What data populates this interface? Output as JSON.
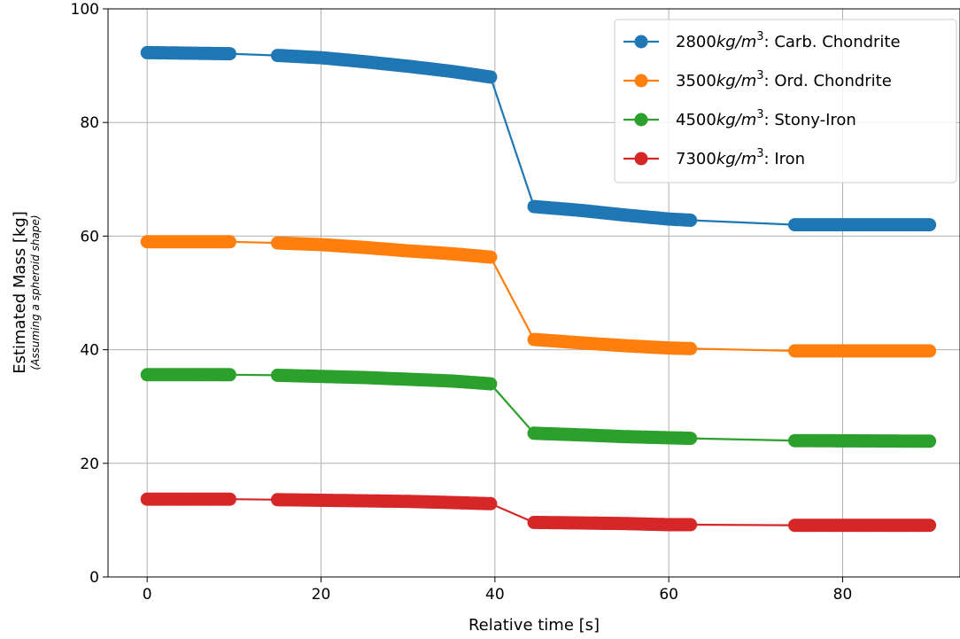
{
  "chart_data": {
    "type": "line",
    "xlabel": "Relative time [s]",
    "ylabel": "Estimated Mass [kg]",
    "ylabel_sub": "(Assuming a spheroid shape)",
    "xlim": [
      -4.5,
      93.5
    ],
    "ylim": [
      0,
      100
    ],
    "xticks": [
      0,
      20,
      40,
      60,
      80
    ],
    "yticks": [
      0,
      20,
      40,
      60,
      80,
      100
    ],
    "grid": true,
    "legend_position": "top-right",
    "marker": "circle",
    "series": [
      {
        "name": "2800kg/m³: Carb. Chondrite",
        "legend": {
          "pre": "2800",
          "var": "kg/m",
          "sup": "3",
          "post": ": Carb. Chondrite"
        },
        "color": "#1f77b4",
        "points": [
          [
            0,
            92.3
          ],
          [
            9.5,
            92.1
          ],
          [
            15,
            91.8
          ],
          [
            20,
            91.4
          ],
          [
            25,
            90.7
          ],
          [
            30,
            89.9
          ],
          [
            35,
            89.0
          ],
          [
            39.5,
            88.0
          ],
          [
            44.5,
            65.2
          ],
          [
            50,
            64.5
          ],
          [
            55,
            63.7
          ],
          [
            60,
            63.0
          ],
          [
            62.5,
            62.8
          ],
          [
            74.5,
            62.0
          ],
          [
            90,
            62.0
          ]
        ],
        "segments": [
          [
            0,
            9.5
          ],
          [
            15,
            39.5
          ],
          [
            44.5,
            62.5
          ],
          [
            74.5,
            90
          ]
        ]
      },
      {
        "name": "3500kg/m³: Ord. Chondrite",
        "legend": {
          "pre": "3500",
          "var": "kg/m",
          "sup": "3",
          "post": ": Ord. Chondrite"
        },
        "color": "#ff7f0e",
        "points": [
          [
            0,
            59.0
          ],
          [
            9.5,
            59.0
          ],
          [
            15,
            58.8
          ],
          [
            20,
            58.5
          ],
          [
            25,
            58.0
          ],
          [
            30,
            57.4
          ],
          [
            35,
            56.9
          ],
          [
            39.5,
            56.3
          ],
          [
            44.5,
            41.8
          ],
          [
            50,
            41.2
          ],
          [
            55,
            40.7
          ],
          [
            60,
            40.3
          ],
          [
            62.5,
            40.2
          ],
          [
            74.5,
            39.8
          ],
          [
            90,
            39.8
          ]
        ],
        "segments": [
          [
            0,
            9.5
          ],
          [
            15,
            39.5
          ],
          [
            44.5,
            62.5
          ],
          [
            74.5,
            90
          ]
        ]
      },
      {
        "name": "4500kg/m³: Stony-Iron",
        "legend": {
          "pre": "4500",
          "var": "kg/m",
          "sup": "3",
          "post": ": Stony-Iron"
        },
        "color": "#2ca02c",
        "points": [
          [
            0,
            35.6
          ],
          [
            9.5,
            35.6
          ],
          [
            15,
            35.5
          ],
          [
            20,
            35.3
          ],
          [
            25,
            35.1
          ],
          [
            30,
            34.8
          ],
          [
            35,
            34.5
          ],
          [
            39.5,
            34.0
          ],
          [
            44.5,
            25.3
          ],
          [
            50,
            25.0
          ],
          [
            55,
            24.7
          ],
          [
            60,
            24.5
          ],
          [
            62.5,
            24.4
          ],
          [
            74.5,
            24.0
          ],
          [
            90,
            23.9
          ]
        ],
        "segments": [
          [
            0,
            9.5
          ],
          [
            15,
            39.5
          ],
          [
            44.5,
            62.5
          ],
          [
            74.5,
            90
          ]
        ]
      },
      {
        "name": "7300kg/m³: Iron",
        "legend": {
          "pre": "7300",
          "var": "kg/m",
          "sup": "3",
          "post": ": Iron"
        },
        "color": "#d62728",
        "points": [
          [
            0,
            13.7
          ],
          [
            9.5,
            13.7
          ],
          [
            15,
            13.6
          ],
          [
            20,
            13.5
          ],
          [
            25,
            13.4
          ],
          [
            30,
            13.3
          ],
          [
            35,
            13.1
          ],
          [
            39.5,
            12.9
          ],
          [
            44.5,
            9.6
          ],
          [
            50,
            9.5
          ],
          [
            55,
            9.4
          ],
          [
            60,
            9.2
          ],
          [
            62.5,
            9.2
          ],
          [
            74.5,
            9.1
          ],
          [
            90,
            9.1
          ]
        ],
        "segments": [
          [
            0,
            9.5
          ],
          [
            15,
            39.5
          ],
          [
            44.5,
            62.5
          ],
          [
            74.5,
            90
          ]
        ]
      }
    ]
  }
}
